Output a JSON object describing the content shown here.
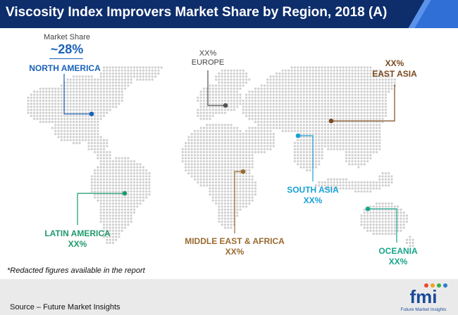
{
  "title": "Viscosity Index Improvers Market Share by Region, 2018 (A)",
  "chart_data": {
    "type": "map",
    "title": "Viscosity Index Improvers Market Share by Region, 2018 (A)",
    "highlight": {
      "caption": "Market Share",
      "value": "~28%",
      "region": "NORTH AMERICA"
    },
    "regions": [
      {
        "name": "NORTH AMERICA",
        "value": "~28%",
        "color": "#1a62b8"
      },
      {
        "name": "EUROPE",
        "value": "XX%",
        "color": "#555555"
      },
      {
        "name": "EAST ASIA",
        "value": "XX%",
        "color": "#7a4a1e"
      },
      {
        "name": "SOUTH ASIA",
        "value": "XX%",
        "color": "#1aa0d8"
      },
      {
        "name": "LATIN AMERICA",
        "value": "XX%",
        "color": "#1f9a6c"
      },
      {
        "name": "MIDDLE EAST & AFRICA",
        "value": "XX%",
        "color": "#9a6a30"
      },
      {
        "name": "OCEANIA",
        "value": "XX%",
        "color": "#18a58a"
      }
    ]
  },
  "footnote": "*Redacted figures available in the report",
  "source": "Source – Future Market Insights",
  "logo": {
    "text": "fmi",
    "subtitle": "Future Market Insights"
  }
}
